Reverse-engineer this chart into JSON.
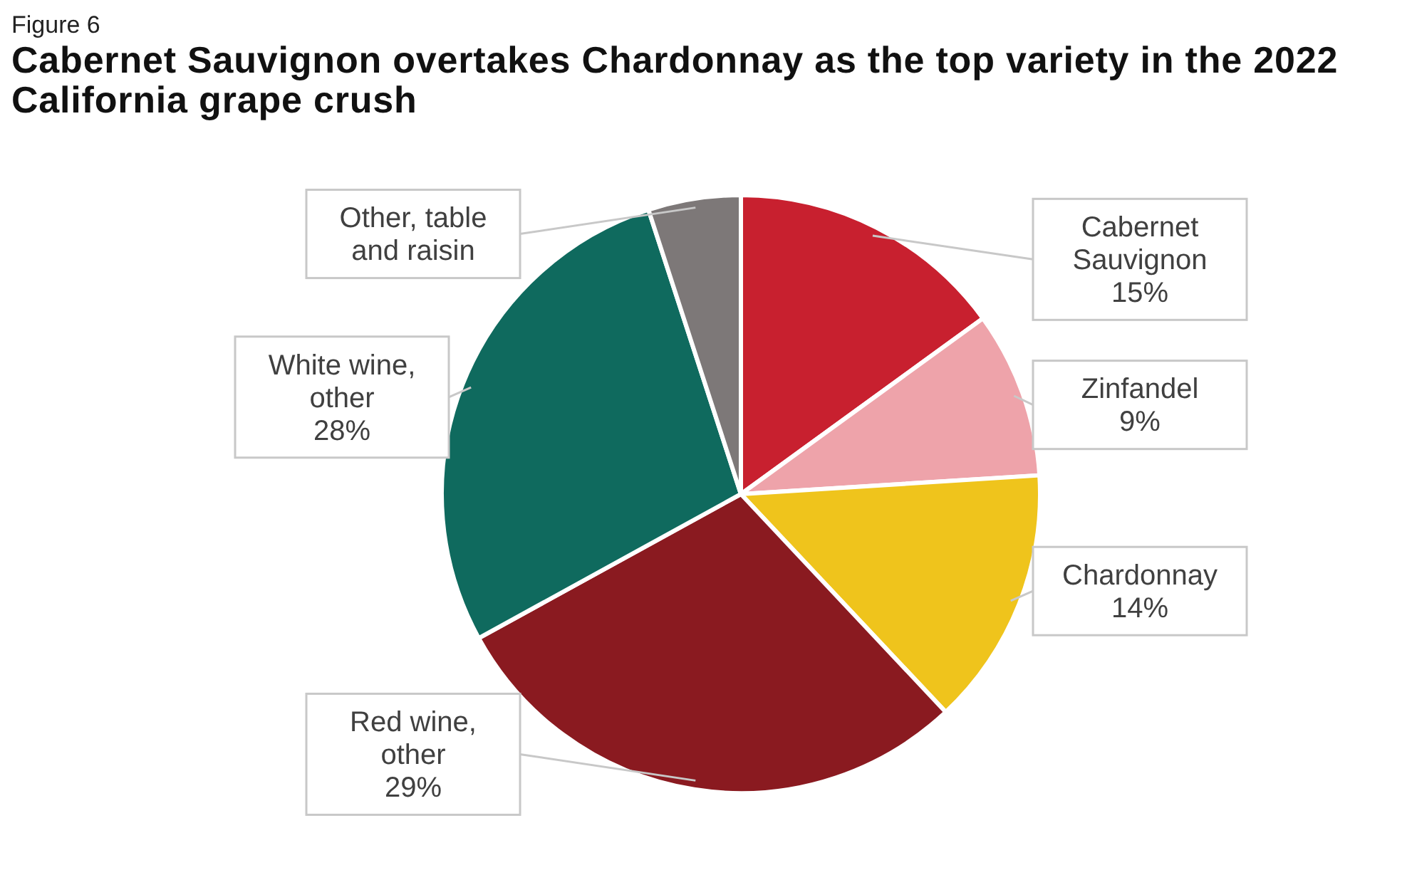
{
  "chart_data": {
    "type": "pie",
    "title": "Cabernet Sauvignon overtakes Chardonnay as the top variety in the 2022 California grape crush",
    "annotations": [
      "Figure 6"
    ],
    "categories": [
      "Cabernet Sauvignon",
      "Zinfandel",
      "Chardonnay",
      "Red wine, other",
      "White wine, other",
      "Other, table and raisin"
    ],
    "values": [
      15,
      9,
      14,
      29,
      28,
      5
    ],
    "value_labels": [
      "15%",
      "9%",
      "14%",
      "29%",
      "28%",
      null
    ],
    "colors": [
      "#c8202f",
      "#eea3aa",
      "#efc41c",
      "#8a1a20",
      "#0f6a5e",
      "#7d7878"
    ],
    "legend": false
  }
}
